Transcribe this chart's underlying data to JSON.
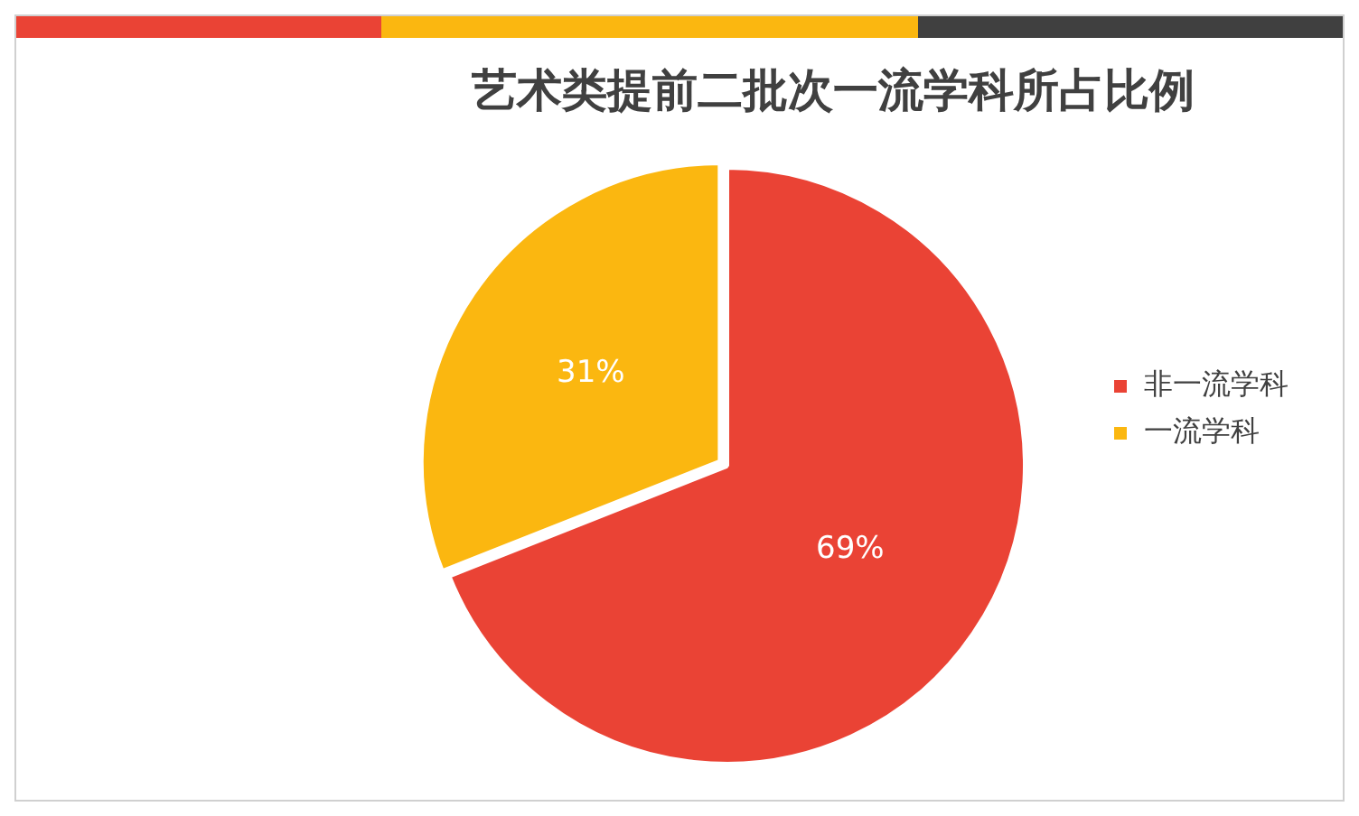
{
  "chart_data": {
    "type": "pie",
    "title": "艺术类提前二批次一流学科所占比例",
    "categories": [
      "非一流学科",
      "一流学科"
    ],
    "values": [
      69,
      31
    ],
    "value_labels": [
      "69%",
      "31%"
    ],
    "colors": [
      "#ea4335",
      "#fbb710"
    ],
    "legend": "right"
  }
}
